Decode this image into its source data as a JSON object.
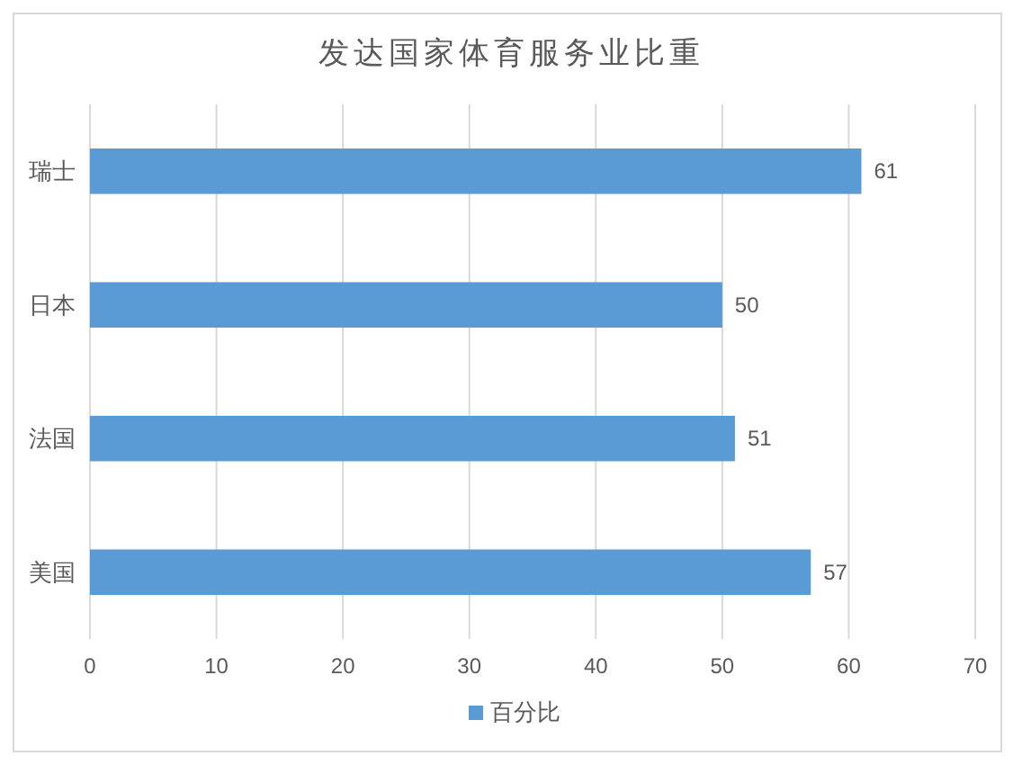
{
  "chart_data": {
    "type": "bar",
    "orientation": "horizontal",
    "title": "发达国家体育服务业比重",
    "categories": [
      "瑞士",
      "日本",
      "法国",
      "美国"
    ],
    "series": [
      {
        "name": "百分比",
        "color": "#5b9bd5",
        "values": [
          61,
          50,
          51,
          57
        ]
      }
    ],
    "data_labels": true,
    "xlim": [
      0,
      70
    ],
    "xticks": [
      0,
      10,
      20,
      30,
      40,
      50,
      60,
      70
    ],
    "grid": "x",
    "legend": "bottom"
  }
}
